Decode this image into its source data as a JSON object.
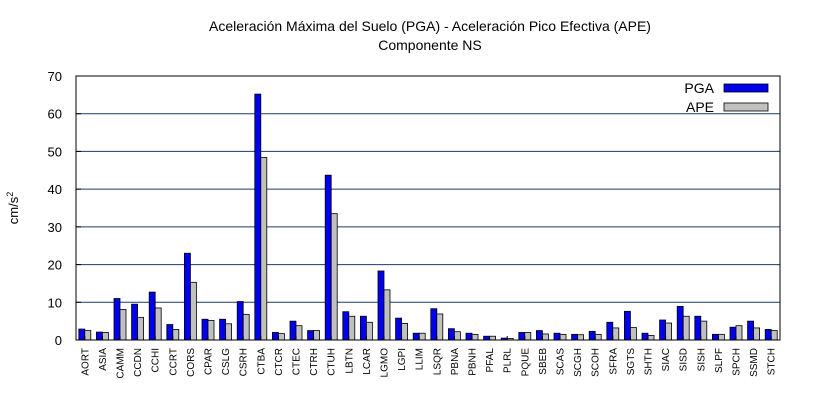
{
  "chart_data": {
    "type": "bar",
    "title_line1": "Aceleración Máxima del Suelo (PGA) -  Aceleración Pico Efectiva (APE)",
    "title_line2": "Componente NS",
    "ylabel_base": "cm/s",
    "ylabel_sup": "2",
    "xlabel": "",
    "ylim": [
      0,
      70
    ],
    "yticks": [
      0,
      10,
      20,
      30,
      40,
      50,
      60,
      70
    ],
    "grid": true,
    "legend_position": "top-right",
    "categories": [
      "AORT",
      "ASIA",
      "CAMM",
      "CCDN",
      "CCHI",
      "CCRT",
      "CORS",
      "CPAR",
      "CSLG",
      "CSRH",
      "CTBA",
      "CTCR",
      "CTEC",
      "CTRH",
      "CTUH",
      "LBTN",
      "LCAR",
      "LGMO",
      "LGPI",
      "LLIM",
      "LSQR",
      "PBNA",
      "PBNH",
      "PFAL",
      "PLRL",
      "PQUE",
      "SBEB",
      "SCAS",
      "SCGH",
      "SCOH",
      "SFRA",
      "SGTS",
      "SHTH",
      "SIAC",
      "SISD",
      "SISH",
      "SLPF",
      "SPCH",
      "SSMD",
      "STCH"
    ],
    "series": [
      {
        "name": "PGA",
        "color": "#0000ee",
        "values": [
          2.9,
          2.1,
          11.0,
          9.5,
          12.7,
          4.1,
          23.0,
          5.5,
          5.5,
          10.2,
          65.2,
          2.0,
          5.0,
          2.5,
          43.7,
          7.5,
          6.3,
          18.3,
          5.8,
          1.8,
          8.3,
          3.0,
          1.8,
          1.0,
          0.5,
          2.0,
          2.5,
          1.8,
          1.5,
          2.3,
          4.7,
          7.6,
          1.8,
          5.3,
          8.9,
          6.3,
          1.5,
          3.4,
          5.0,
          2.8
        ]
      },
      {
        "name": "APE",
        "color": "#c0c0c0",
        "values": [
          2.5,
          2.0,
          8.1,
          6.0,
          8.5,
          2.8,
          15.3,
          5.2,
          4.3,
          6.8,
          48.4,
          1.7,
          3.8,
          2.5,
          33.5,
          6.3,
          4.7,
          13.3,
          4.4,
          1.8,
          6.9,
          2.2,
          1.5,
          1.0,
          0.4,
          2.0,
          1.6,
          1.5,
          1.4,
          1.5,
          3.2,
          3.3,
          1.2,
          4.5,
          6.3,
          5.0,
          1.5,
          3.8,
          3.2,
          2.5
        ]
      }
    ]
  }
}
